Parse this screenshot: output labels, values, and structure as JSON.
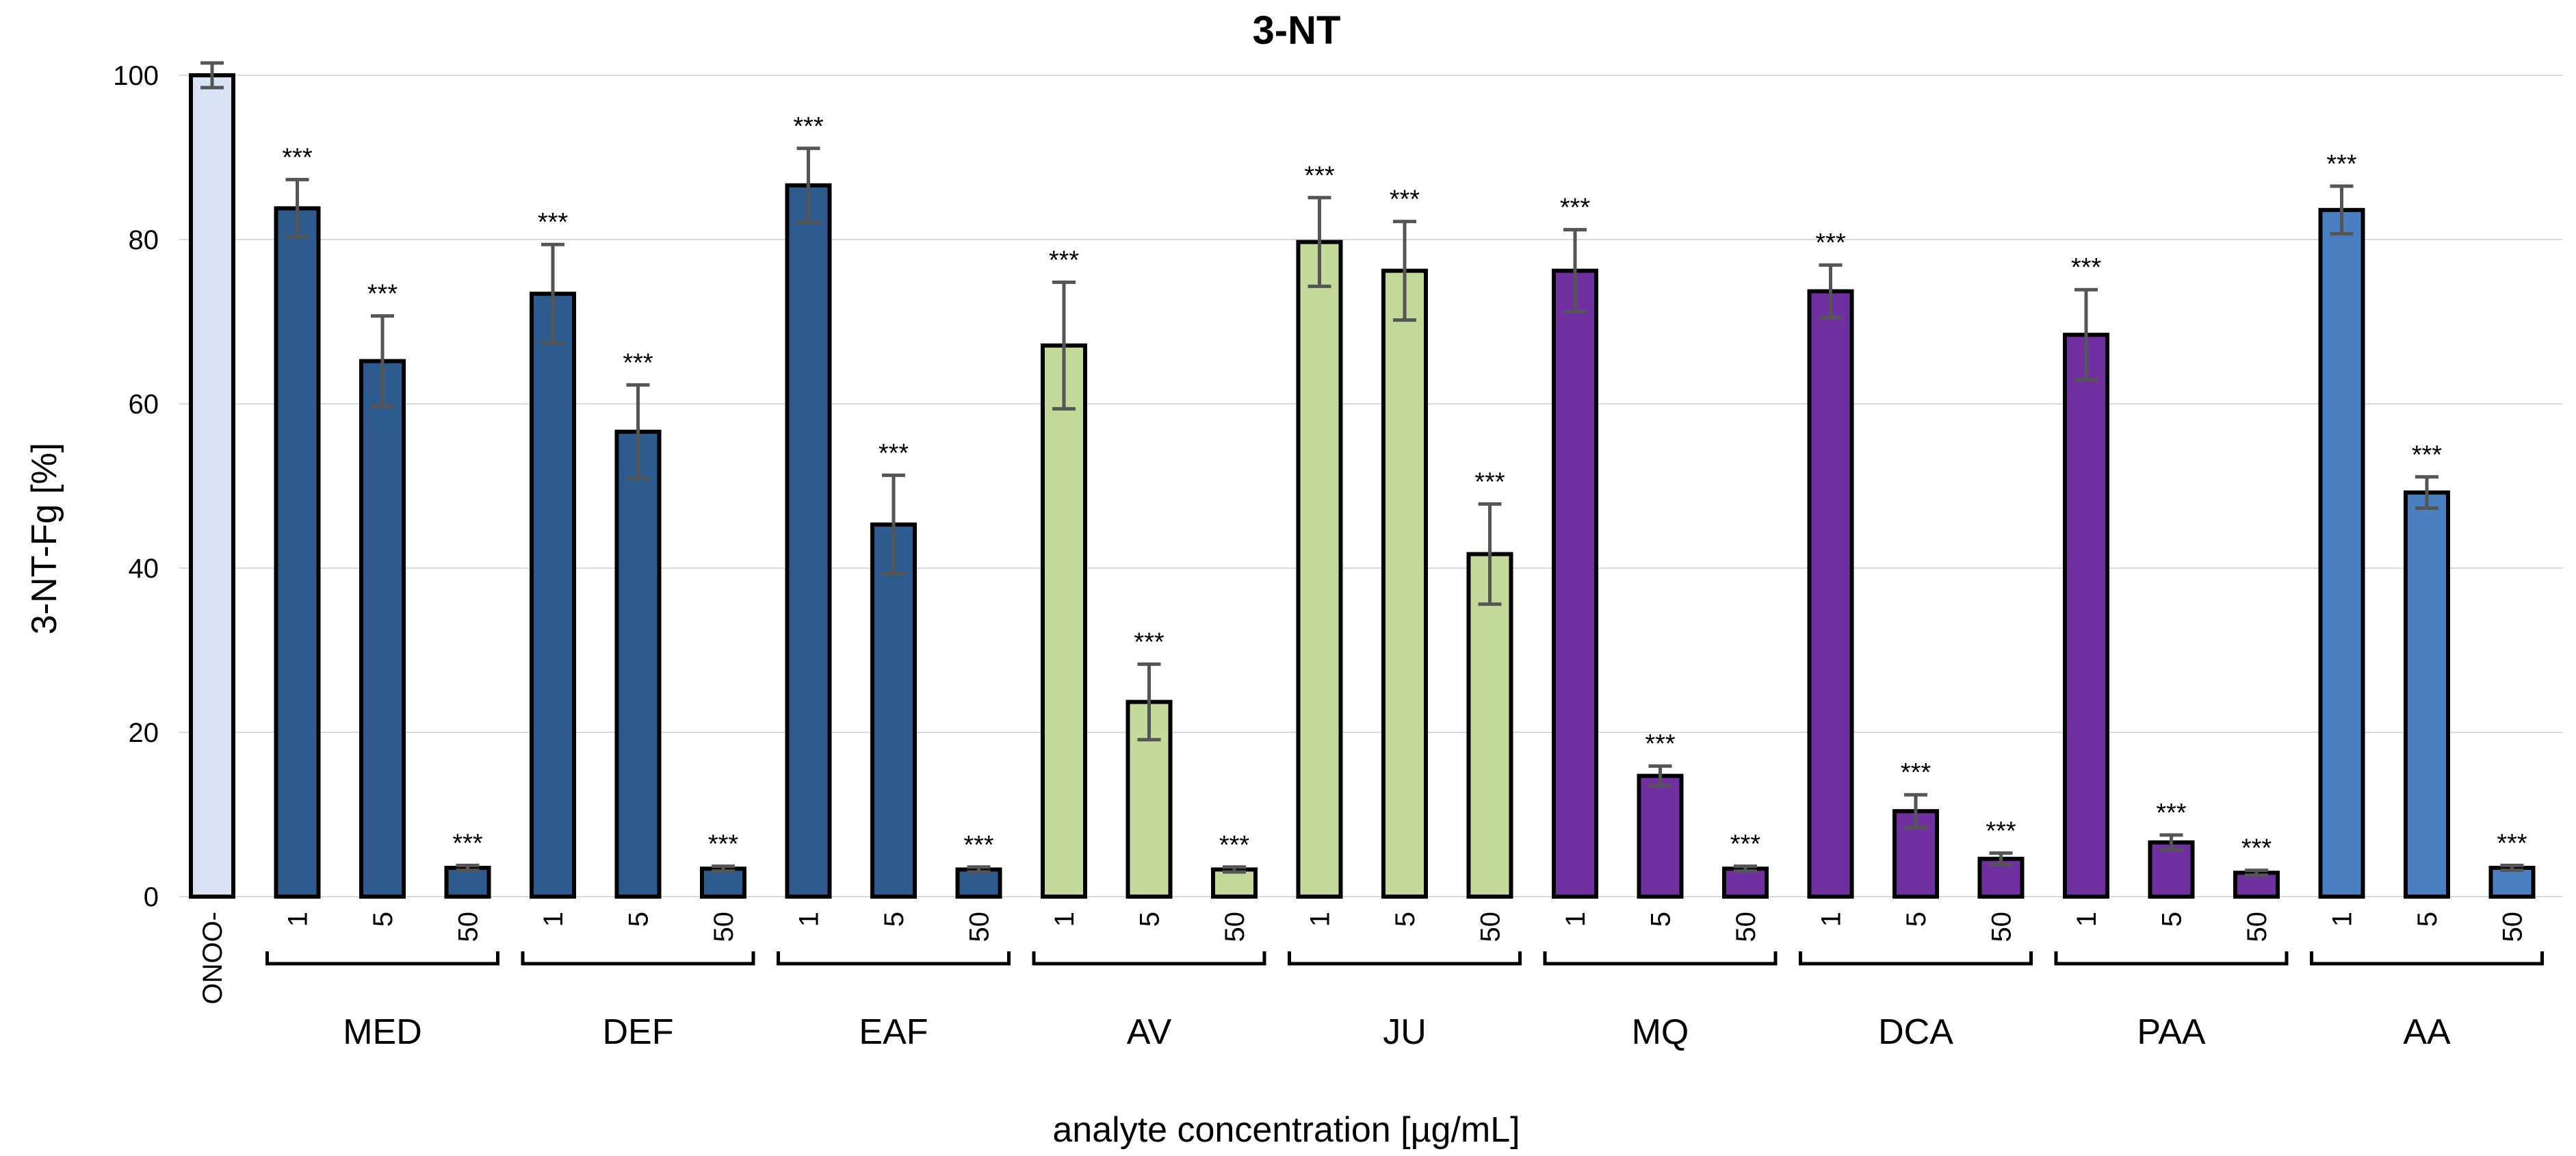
{
  "chart_data": {
    "type": "bar",
    "title": "3-NT",
    "xlabel": "analyte concentration [µg/mL]",
    "ylabel": "3-NT-Fg [%]",
    "ylim": [
      0,
      100
    ],
    "yticks": [
      0,
      20,
      40,
      60,
      80,
      100
    ],
    "grid": true,
    "colors": {
      "control": "#dae3f3",
      "dark_blue": "#2e5b8e",
      "light_green": "#c5d99a",
      "purple": "#7030a0",
      "medium_blue": "#4a7fc1",
      "bar_outline": "#000000",
      "error_bar": "#555555",
      "grid": "#d9d9d9"
    },
    "control": {
      "label": "ONOO-",
      "value": 100,
      "error": 1.5,
      "significance": "",
      "color_key": "control"
    },
    "groups": [
      {
        "name": "MED",
        "color_key": "dark_blue",
        "bars": [
          {
            "label": "1",
            "value": 83.8,
            "error": 3.5,
            "significance": "***"
          },
          {
            "label": "5",
            "value": 65.2,
            "error": 5.5,
            "significance": "***"
          },
          {
            "label": "50",
            "value": 3.5,
            "error": 0.3,
            "significance": "***"
          }
        ]
      },
      {
        "name": "DEF",
        "color_key": "dark_blue",
        "bars": [
          {
            "label": "1",
            "value": 73.4,
            "error": 6.0,
            "significance": "***"
          },
          {
            "label": "5",
            "value": 56.6,
            "error": 5.7,
            "significance": "***"
          },
          {
            "label": "50",
            "value": 3.4,
            "error": 0.3,
            "significance": "***"
          }
        ]
      },
      {
        "name": "EAF",
        "color_key": "dark_blue",
        "bars": [
          {
            "label": "1",
            "value": 86.6,
            "error": 4.5,
            "significance": "***"
          },
          {
            "label": "5",
            "value": 45.3,
            "error": 6.0,
            "significance": "***"
          },
          {
            "label": "50",
            "value": 3.3,
            "error": 0.3,
            "significance": "***"
          }
        ]
      },
      {
        "name": "AV",
        "color_key": "light_green",
        "bars": [
          {
            "label": "1",
            "value": 67.1,
            "error": 7.7,
            "significance": "***"
          },
          {
            "label": "5",
            "value": 23.7,
            "error": 4.6,
            "significance": "***"
          },
          {
            "label": "50",
            "value": 3.3,
            "error": 0.3,
            "significance": "***"
          }
        ]
      },
      {
        "name": "JU",
        "color_key": "light_green",
        "bars": [
          {
            "label": "1",
            "value": 79.7,
            "error": 5.4,
            "significance": "***"
          },
          {
            "label": "5",
            "value": 76.2,
            "error": 6.0,
            "significance": "***"
          },
          {
            "label": "50",
            "value": 41.7,
            "error": 6.1,
            "significance": "***"
          }
        ]
      },
      {
        "name": "MQ",
        "color_key": "purple",
        "bars": [
          {
            "label": "1",
            "value": 76.2,
            "error": 5.0,
            "significance": "***"
          },
          {
            "label": "5",
            "value": 14.7,
            "error": 1.2,
            "significance": "***"
          },
          {
            "label": "50",
            "value": 3.4,
            "error": 0.3,
            "significance": "***"
          }
        ]
      },
      {
        "name": "DCA",
        "color_key": "purple",
        "bars": [
          {
            "label": "1",
            "value": 73.7,
            "error": 3.2,
            "significance": "***"
          },
          {
            "label": "5",
            "value": 10.4,
            "error": 2.0,
            "significance": "***"
          },
          {
            "label": "50",
            "value": 4.6,
            "error": 0.7,
            "significance": "***"
          }
        ]
      },
      {
        "name": "PAA",
        "color_key": "purple",
        "bars": [
          {
            "label": "1",
            "value": 68.4,
            "error": 5.5,
            "significance": "***"
          },
          {
            "label": "5",
            "value": 6.6,
            "error": 0.9,
            "significance": "***"
          },
          {
            "label": "50",
            "value": 2.9,
            "error": 0.3,
            "significance": "***"
          }
        ]
      },
      {
        "name": "AA",
        "color_key": "medium_blue",
        "bars": [
          {
            "label": "1",
            "value": 83.6,
            "error": 2.9,
            "significance": "***"
          },
          {
            "label": "5",
            "value": 49.2,
            "error": 1.9,
            "significance": "***"
          },
          {
            "label": "50",
            "value": 3.5,
            "error": 0.3,
            "significance": "***"
          }
        ]
      }
    ]
  }
}
